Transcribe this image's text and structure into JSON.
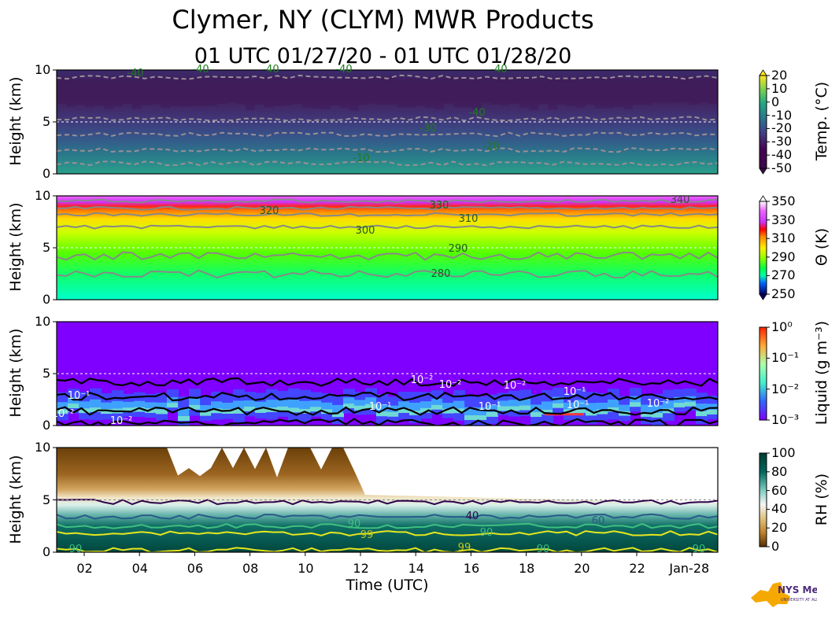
{
  "title": "Clymer, NY (CLYM) MWR Products",
  "subtitle": "01 UTC 01/27/20 - 01 UTC 01/28/20",
  "logo": {
    "text": "NYS Mesonet",
    "small": "UNIVERSITY AT ALBANY",
    "icon": "new-york-state-map-icon",
    "color": "#f5a800"
  },
  "chart_data": [
    {
      "type": "heatmap",
      "name": "temperature",
      "ylabel": "Height (km)",
      "colorbar_label": "Temp. (°C)",
      "colorbar_ticks": [
        "20",
        "10",
        "0",
        "-10",
        "-20",
        "-30",
        "-40",
        "-50"
      ],
      "ylim": [
        0,
        10
      ],
      "yticks": [
        "0",
        "5",
        "10"
      ],
      "contour_labels": [
        "-40",
        "-40",
        "-40",
        "-40",
        "-40",
        "-40",
        "-30",
        "-20",
        "-10"
      ],
      "contours": [
        -10,
        -20,
        -30,
        -40
      ]
    },
    {
      "type": "heatmap",
      "name": "potential-temperature",
      "ylabel": "Height (km)",
      "colorbar_label": "Θ (K)",
      "colorbar_ticks": [
        "350",
        "330",
        "310",
        "290",
        "270",
        "250"
      ],
      "ylim": [
        0,
        10
      ],
      "yticks": [
        "0",
        "5",
        "10"
      ],
      "contour_labels": [
        "320",
        "330",
        "340",
        "310",
        "300",
        "290",
        "280"
      ],
      "contours": [
        280,
        290,
        300,
        310,
        320,
        330,
        340
      ]
    },
    {
      "type": "heatmap",
      "name": "liquid",
      "ylabel": "Height (km)",
      "colorbar_label": "Liquid (g m⁻³)",
      "colorbar_ticks": [
        "10⁰",
        "10⁻¹",
        "10⁻²",
        "10⁻³"
      ],
      "ylim": [
        0,
        10
      ],
      "yticks": [
        "0",
        "5",
        "10"
      ],
      "contour_labels": [
        "10⁻²",
        "10⁻²",
        "10⁻²",
        "10⁻¹",
        "10⁻¹",
        "10⁻¹",
        "10⁻¹",
        "10⁻²",
        "10⁻¹",
        "10⁻²",
        "10⁻²"
      ],
      "contours": [
        0.001,
        0.01,
        0.1
      ]
    },
    {
      "type": "heatmap",
      "name": "relative-humidity",
      "ylabel": "Height (km)",
      "colorbar_label": "RH (%)",
      "colorbar_ticks": [
        "100",
        "80",
        "60",
        "40",
        "20",
        "0"
      ],
      "ylim": [
        0,
        10
      ],
      "yticks": [
        "0",
        "5",
        "10"
      ],
      "contour_labels": [
        "40",
        "60",
        "90",
        "99",
        "90",
        "99",
        "90",
        "90",
        "90",
        "90"
      ],
      "contours": [
        40,
        60,
        90,
        99
      ],
      "xlabel": "Time (UTC)",
      "xticks": [
        "02",
        "04",
        "06",
        "08",
        "10",
        "12",
        "14",
        "16",
        "18",
        "20",
        "22",
        "Jan-28"
      ]
    }
  ]
}
